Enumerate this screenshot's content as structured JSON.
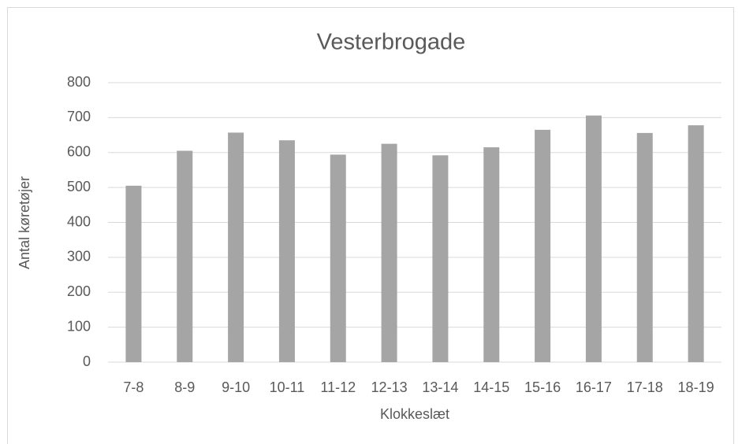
{
  "chart_data": {
    "type": "bar",
    "title": "Vesterbrogade",
    "x_label": "Klokkeslæt",
    "y_label": "Antal køretøjer",
    "categories": [
      "7-8",
      "8-9",
      "9-10",
      "10-11",
      "11-12",
      "12-13",
      "13-14",
      "14-15",
      "15-16",
      "16-17",
      "17-18",
      "18-19"
    ],
    "values": [
      505,
      605,
      657,
      635,
      594,
      625,
      592,
      615,
      665,
      706,
      656,
      678
    ],
    "color": "#a5a5a5",
    "ylim": [
      0,
      800
    ],
    "yticks": [
      0,
      100,
      200,
      300,
      400,
      500,
      600,
      700,
      800
    ],
    "grid": true
  }
}
